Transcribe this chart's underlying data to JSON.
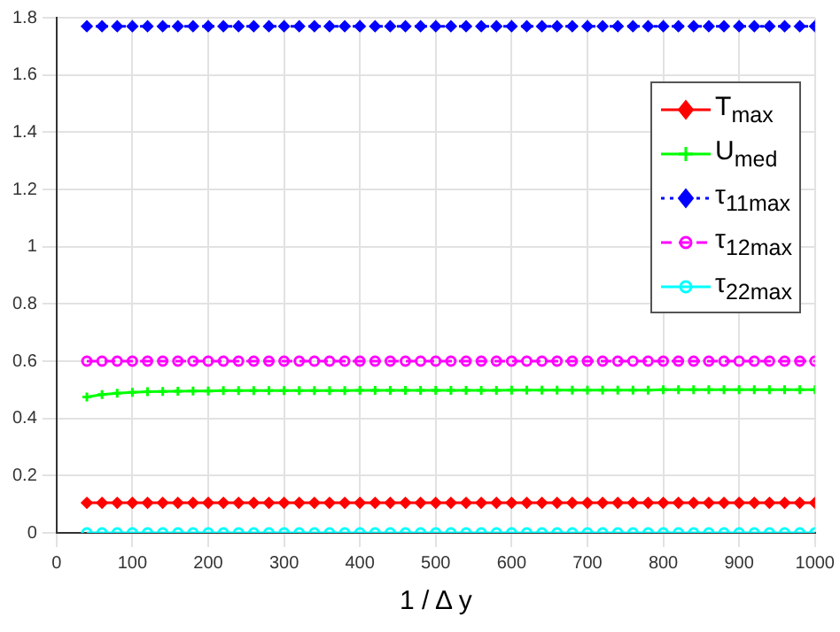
{
  "chart_data": {
    "type": "line",
    "xlabel": "1 / Δ y",
    "x": [
      40,
      60,
      80,
      100,
      120,
      140,
      160,
      180,
      200,
      220,
      240,
      260,
      280,
      300,
      320,
      340,
      360,
      380,
      400,
      420,
      440,
      460,
      480,
      500,
      520,
      540,
      560,
      580,
      600,
      620,
      640,
      660,
      680,
      700,
      720,
      740,
      760,
      780,
      800,
      820,
      840,
      860,
      880,
      900,
      920,
      940,
      960,
      980,
      1000
    ],
    "series": [
      {
        "name": "T$_{max}$",
        "color": "#ff0000",
        "marker": "diamond",
        "line_style": "solid",
        "values": [
          0.105,
          0.105,
          0.105,
          0.105,
          0.105,
          0.105,
          0.105,
          0.105,
          0.105,
          0.105,
          0.105,
          0.105,
          0.105,
          0.105,
          0.105,
          0.105,
          0.105,
          0.105,
          0.105,
          0.105,
          0.105,
          0.105,
          0.105,
          0.105,
          0.105,
          0.105,
          0.105,
          0.105,
          0.105,
          0.105,
          0.105,
          0.105,
          0.105,
          0.105,
          0.105,
          0.105,
          0.105,
          0.105,
          0.105,
          0.105,
          0.105,
          0.105,
          0.105,
          0.105,
          0.105,
          0.105,
          0.105,
          0.105,
          0.105
        ]
      },
      {
        "name": "U$_{med}$",
        "color": "#00ff00",
        "marker": "cross",
        "line_style": "solid",
        "values": [
          0.475,
          0.483,
          0.488,
          0.491,
          0.493,
          0.494,
          0.495,
          0.496,
          0.496,
          0.497,
          0.497,
          0.497,
          0.497,
          0.497,
          0.497,
          0.497,
          0.497,
          0.497,
          0.498,
          0.498,
          0.498,
          0.498,
          0.498,
          0.498,
          0.498,
          0.498,
          0.498,
          0.498,
          0.499,
          0.499,
          0.499,
          0.499,
          0.499,
          0.499,
          0.499,
          0.499,
          0.499,
          0.499,
          0.5,
          0.5,
          0.5,
          0.5,
          0.5,
          0.5,
          0.5,
          0.5,
          0.5,
          0.5,
          0.5
        ]
      },
      {
        "name": "τ$_{11max}$",
        "color": "#0000ff",
        "marker": "diamond",
        "line_style": "dotted",
        "values": [
          1.77,
          1.77,
          1.77,
          1.77,
          1.77,
          1.77,
          1.77,
          1.77,
          1.77,
          1.77,
          1.77,
          1.77,
          1.77,
          1.77,
          1.77,
          1.77,
          1.77,
          1.77,
          1.77,
          1.77,
          1.77,
          1.77,
          1.77,
          1.77,
          1.77,
          1.77,
          1.77,
          1.77,
          1.77,
          1.77,
          1.77,
          1.77,
          1.77,
          1.77,
          1.77,
          1.77,
          1.77,
          1.77,
          1.77,
          1.77,
          1.77,
          1.77,
          1.77,
          1.77,
          1.77,
          1.77,
          1.77,
          1.77,
          1.77
        ]
      },
      {
        "name": "τ$_{12max}$",
        "color": "#ff00ff",
        "marker": "circle",
        "line_style": "dashed",
        "values": [
          0.6,
          0.6,
          0.6,
          0.6,
          0.6,
          0.6,
          0.6,
          0.6,
          0.6,
          0.6,
          0.6,
          0.6,
          0.6,
          0.6,
          0.6,
          0.6,
          0.6,
          0.6,
          0.6,
          0.6,
          0.6,
          0.6,
          0.6,
          0.6,
          0.6,
          0.6,
          0.6,
          0.6,
          0.6,
          0.6,
          0.6,
          0.6,
          0.6,
          0.6,
          0.6,
          0.6,
          0.6,
          0.6,
          0.6,
          0.6,
          0.6,
          0.6,
          0.6,
          0.6,
          0.6,
          0.6,
          0.6,
          0.6,
          0.6
        ]
      },
      {
        "name": "τ$_{22max}$",
        "color": "#00ffff",
        "marker": "circle",
        "line_style": "solid",
        "values": [
          0,
          0,
          0,
          0,
          0,
          0,
          0,
          0,
          0,
          0,
          0,
          0,
          0,
          0,
          0,
          0,
          0,
          0,
          0,
          0,
          0,
          0,
          0,
          0,
          0,
          0,
          0,
          0,
          0,
          0,
          0,
          0,
          0,
          0,
          0,
          0,
          0,
          0,
          0,
          0,
          0,
          0,
          0,
          0,
          0,
          0,
          0,
          0,
          0
        ]
      }
    ],
    "xlim": [
      0,
      1000
    ],
    "xticks": [
      0,
      100,
      200,
      300,
      400,
      500,
      600,
      700,
      800,
      900,
      1000
    ],
    "ylim": [
      0,
      1.8
    ],
    "yticks": [
      0,
      0.2,
      0.4,
      0.6,
      0.8,
      1,
      1.2,
      1.4,
      1.6,
      1.8
    ],
    "grid": true,
    "legend": "top right"
  }
}
